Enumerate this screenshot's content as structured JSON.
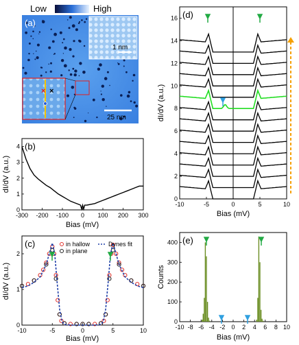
{
  "colorbar": {
    "low": "Low",
    "high": "High"
  },
  "panel_a": {
    "label": "(a)",
    "scale_main": "25 nm",
    "scale_inset": "1 nm"
  },
  "chart_data": [
    {
      "panel": "(b)",
      "type": "line",
      "xlabel": "Bias (mV)",
      "ylabel": "dI/dV (a.u.)",
      "xlim": [
        -300,
        300
      ],
      "ylim": [
        0,
        4.5
      ],
      "xticks": [
        "-300",
        "-200",
        "-100",
        "0",
        "100",
        "200",
        "300"
      ],
      "yticks": [
        "0",
        "1",
        "2",
        "3",
        "4"
      ],
      "x": [
        -300,
        -280,
        -260,
        -240,
        -220,
        -200,
        -180,
        -160,
        -140,
        -120,
        -100,
        -80,
        -60,
        -40,
        -20,
        -10,
        -5,
        0,
        5,
        10,
        20,
        40,
        60,
        80,
        100,
        120,
        140,
        160,
        180,
        200,
        220,
        240,
        260,
        280,
        300
      ],
      "y": [
        4.0,
        3.2,
        2.6,
        2.2,
        1.95,
        1.75,
        1.55,
        1.4,
        1.2,
        1.0,
        0.85,
        0.7,
        0.55,
        0.45,
        0.35,
        0.3,
        0.05,
        0.3,
        0.05,
        0.3,
        0.3,
        0.35,
        0.4,
        0.5,
        0.6,
        0.7,
        0.8,
        0.9,
        1.0,
        1.1,
        1.2,
        1.3,
        1.4,
        1.5,
        1.5
      ]
    },
    {
      "panel": "(c)",
      "type": "scatter",
      "xlabel": "Bias (mV)",
      "ylabel": "dI/dV (a.u.)",
      "xlim": [
        -10,
        10
      ],
      "ylim": [
        0,
        2.5
      ],
      "xticks": [
        "-10",
        "-5",
        "0",
        "5",
        "10"
      ],
      "yticks": [
        "0",
        "1",
        "2"
      ],
      "legend": [
        "in hallow",
        "in plane",
        "Dynes fit"
      ],
      "series": [
        {
          "name": "in hallow",
          "color": "#e0302a",
          "x": [
            -10,
            -9,
            -8,
            -7,
            -6.5,
            -6,
            -5.5,
            -5,
            -4.7,
            -4.4,
            -4.1,
            -3.8,
            -3.5,
            -3,
            -2,
            -1,
            0,
            1,
            2,
            3,
            3.5,
            3.8,
            4.1,
            4.4,
            4.7,
            5,
            5.5,
            6,
            6.5,
            7,
            8,
            9,
            10
          ],
          "y": [
            1.1,
            1.15,
            1.25,
            1.4,
            1.55,
            1.75,
            2.0,
            2.2,
            2.0,
            1.4,
            0.7,
            0.3,
            0.12,
            0.05,
            0.03,
            0.03,
            0.03,
            0.03,
            0.03,
            0.05,
            0.12,
            0.3,
            0.7,
            1.4,
            2.0,
            2.25,
            2.0,
            1.75,
            1.55,
            1.4,
            1.25,
            1.15,
            1.1
          ]
        },
        {
          "name": "in plane",
          "color": "#222222",
          "x": [
            -10,
            -8,
            -6,
            -5,
            -4.4,
            -3.8,
            -3,
            -1,
            0,
            1,
            3,
            3.8,
            4.4,
            5,
            6,
            8,
            10
          ],
          "y": [
            1.1,
            1.25,
            1.7,
            2.1,
            1.3,
            0.3,
            0.05,
            0.03,
            0.03,
            0.03,
            0.05,
            0.3,
            1.3,
            2.1,
            1.7,
            1.25,
            1.1
          ]
        },
        {
          "name": "Dynes fit",
          "color": "#1f3fa8",
          "x": [
            -10,
            -9,
            -8,
            -7,
            -6,
            -5.5,
            -5,
            -4.6,
            -4.2,
            -3.8,
            -3.4,
            -3,
            -2,
            0,
            2,
            3,
            3.4,
            3.8,
            4.2,
            4.6,
            5,
            5.5,
            6,
            7,
            8,
            9,
            10
          ],
          "y": [
            1.05,
            1.1,
            1.2,
            1.35,
            1.7,
            2.0,
            2.3,
            2.0,
            1.2,
            0.45,
            0.1,
            0.02,
            0.0,
            0.0,
            0.0,
            0.02,
            0.1,
            0.45,
            1.2,
            2.0,
            2.3,
            2.0,
            1.7,
            1.35,
            1.2,
            1.1,
            1.05
          ]
        }
      ]
    },
    {
      "panel": "(d)",
      "type": "line",
      "xlabel": "Bias (mV)",
      "ylabel": "dI/dV (a.u.)",
      "xlim": [
        -10,
        10
      ],
      "ylim": [
        0,
        17
      ],
      "xticks": [
        "-10",
        "-5",
        "0",
        "5",
        "10"
      ],
      "yticks": [
        "0",
        "2",
        "4",
        "6",
        "8",
        "10",
        "12",
        "14",
        "16"
      ],
      "offsets": [
        1,
        2,
        3,
        4,
        5,
        6,
        7,
        8,
        9,
        10,
        11,
        12,
        13,
        14
      ],
      "highlight_index": 8,
      "highlight_color": "#22dd22"
    },
    {
      "panel": "(e)",
      "type": "bar",
      "xlabel": "Bias (mV)",
      "ylabel": "Counts",
      "xlim": [
        -10,
        10
      ],
      "ylim": [
        0,
        450
      ],
      "xticks": [
        "-10",
        "-8",
        "-6",
        "-4",
        "-2",
        "0",
        "2",
        "4",
        "6",
        "8",
        "10"
      ],
      "yticks": [
        "0",
        "100",
        "200",
        "300",
        "400"
      ],
      "color": "#6b8e23",
      "bins": [
        -5.8,
        -5.6,
        -5.4,
        -5.2,
        -5.0,
        -4.8,
        -4.6,
        -4.4,
        4.4,
        4.6,
        4.8,
        5.0,
        5.2,
        5.4,
        5.6
      ],
      "counts": [
        10,
        40,
        120,
        400,
        330,
        100,
        20,
        5,
        10,
        120,
        430,
        300,
        60,
        15,
        5
      ]
    }
  ]
}
